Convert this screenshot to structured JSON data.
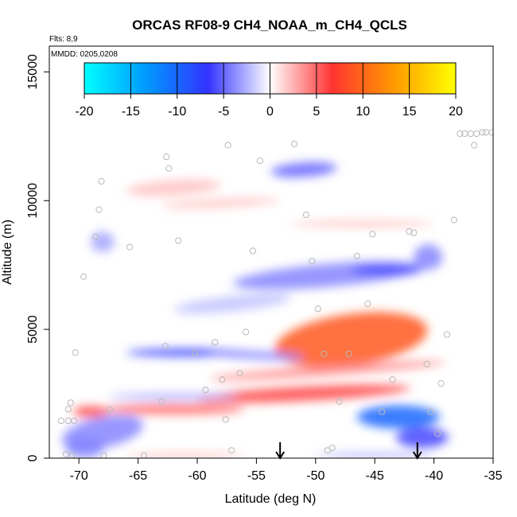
{
  "chart_data": {
    "type": "heatmap",
    "title": "ORCAS RF08-9 CH4_NOAA_m_CH4_QCLS",
    "annotations": {
      "flights": "Flts: 8,9",
      "dates": "MMDD: 0205,0208"
    },
    "xlabel": "Latitude (deg N)",
    "ylabel": "Altitude (m)",
    "xlim": [
      -72.5,
      -35
    ],
    "ylim": [
      0,
      16000
    ],
    "x_ticks": [
      -70,
      -65,
      -60,
      -55,
      -50,
      -45,
      -40,
      -35
    ],
    "y_ticks": [
      0,
      5000,
      10000,
      15000
    ],
    "colorbar": {
      "range": [
        -20,
        20
      ],
      "ticks": [
        -20,
        -15,
        -10,
        -5,
        0,
        5,
        10,
        15,
        20
      ],
      "stops": [
        "#00ffff",
        "#0099ff",
        "#3333ff",
        "#ffffff",
        "#ff3333",
        "#ff9900",
        "#ffff00"
      ]
    },
    "features": [
      {
        "x": -47,
        "y": 4600,
        "rx": 6.5,
        "ry": 1000,
        "value": 9,
        "rot": -8
      },
      {
        "x": -51,
        "y": 2500,
        "rx": 9,
        "ry": 280,
        "value": 6,
        "rot": -3
      },
      {
        "x": -49,
        "y": 3400,
        "rx": 10,
        "ry": 180,
        "value": 4,
        "rot": -4
      },
      {
        "x": -62,
        "y": 1900,
        "rx": 6,
        "ry": 200,
        "value": 5,
        "rot": 0
      },
      {
        "x": -69,
        "y": 1800,
        "rx": 1.5,
        "ry": 220,
        "value": 6,
        "rot": 0
      },
      {
        "x": -61,
        "y": 4100,
        "rx": 5,
        "ry": 150,
        "value": -7,
        "rot": 0
      },
      {
        "x": -55,
        "y": 4000,
        "rx": 4,
        "ry": 160,
        "value": -4,
        "rot": 3
      },
      {
        "x": -43,
        "y": 1600,
        "rx": 3.5,
        "ry": 450,
        "value": -10,
        "rot": 0
      },
      {
        "x": -41,
        "y": 800,
        "rx": 2.2,
        "ry": 400,
        "value": -6,
        "rot": 0
      },
      {
        "x": -49,
        "y": 7100,
        "rx": 8,
        "ry": 450,
        "value": -4,
        "rot": -5
      },
      {
        "x": -44,
        "y": 7300,
        "rx": 3,
        "ry": 200,
        "value": -6,
        "rot": 0
      },
      {
        "x": -40.5,
        "y": 7800,
        "rx": 1.2,
        "ry": 500,
        "value": -4,
        "rot": 0
      },
      {
        "x": -51,
        "y": 11200,
        "rx": 2.8,
        "ry": 280,
        "value": -5,
        "rot": -4
      },
      {
        "x": -62,
        "y": 10500,
        "rx": 4,
        "ry": 300,
        "value": 2,
        "rot": -4
      },
      {
        "x": -58,
        "y": 9900,
        "rx": 5,
        "ry": 160,
        "value": 2,
        "rot": -3
      },
      {
        "x": -68,
        "y": 1000,
        "rx": 3.5,
        "ry": 600,
        "value": -4,
        "rot": -12
      },
      {
        "x": -69.5,
        "y": 400,
        "rx": 1.6,
        "ry": 400,
        "value": -4,
        "rot": 0
      },
      {
        "x": -62,
        "y": 2400,
        "rx": 5.5,
        "ry": 120,
        "value": -3,
        "rot": 0
      },
      {
        "x": -61,
        "y": 100,
        "rx": 5,
        "ry": 80,
        "value": 3,
        "rot": 0
      },
      {
        "x": -45,
        "y": 100,
        "rx": 5,
        "ry": 100,
        "value": -3,
        "rot": 0
      },
      {
        "x": -68,
        "y": 8400,
        "rx": 1,
        "ry": 400,
        "value": -3,
        "rot": 0
      },
      {
        "x": -46,
        "y": 9100,
        "rx": 6,
        "ry": 130,
        "value": 2,
        "rot": 0
      },
      {
        "x": -57,
        "y": 6000,
        "rx": 5,
        "ry": 300,
        "value": -2,
        "rot": -6
      }
    ],
    "points": [
      [
        -71.5,
        1450
      ],
      [
        -71.1,
        150
      ],
      [
        -70.9,
        1450
      ],
      [
        -70.7,
        2150
      ],
      [
        -70.9,
        1900
      ],
      [
        -70.6,
        100
      ],
      [
        -70.4,
        1450
      ],
      [
        -70.3,
        4100
      ],
      [
        -69.6,
        7050
      ],
      [
        -68.6,
        8600
      ],
      [
        -68.3,
        9650
      ],
      [
        -68.1,
        10750
      ],
      [
        -67.9,
        100
      ],
      [
        -67.4,
        1900
      ],
      [
        -65.7,
        8200
      ],
      [
        -64.5,
        100
      ],
      [
        -63.0,
        2200
      ],
      [
        -62.7,
        4350
      ],
      [
        -62.6,
        11700
      ],
      [
        -62.4,
        11250
      ],
      [
        -61.6,
        8450
      ],
      [
        -60.2,
        4100
      ],
      [
        -59.3,
        2650
      ],
      [
        -58.5,
        4500
      ],
      [
        -57.9,
        3050
      ],
      [
        -57.6,
        1500
      ],
      [
        -57.4,
        12150
      ],
      [
        -57.1,
        300
      ],
      [
        -56.4,
        3300
      ],
      [
        -55.9,
        4900
      ],
      [
        -55.3,
        8050
      ],
      [
        -54.7,
        11550
      ],
      [
        -51.8,
        12200
      ],
      [
        -50.8,
        9450
      ],
      [
        -50.3,
        7650
      ],
      [
        -49.8,
        5800
      ],
      [
        -49.3,
        4050
      ],
      [
        -49.0,
        300
      ],
      [
        -48.6,
        400
      ],
      [
        -48.0,
        2200
      ],
      [
        -47.2,
        4050
      ],
      [
        -46.5,
        7850
      ],
      [
        -45.6,
        6000
      ],
      [
        -45.2,
        8700
      ],
      [
        -44.4,
        1800
      ],
      [
        -43.5,
        3050
      ],
      [
        -42.1,
        8800
      ],
      [
        -41.7,
        8750
      ],
      [
        -40.3,
        1800
      ],
      [
        -39.7,
        950
      ],
      [
        -39.4,
        2900
      ],
      [
        -38.9,
        4800
      ],
      [
        -38.3,
        9250
      ],
      [
        -37.8,
        12600
      ],
      [
        -37.4,
        12600
      ],
      [
        -36.9,
        12600
      ],
      [
        -36.6,
        12150
      ],
      [
        -36.4,
        12600
      ],
      [
        -35.9,
        12650
      ],
      [
        -35.6,
        12650
      ],
      [
        -35.1,
        12650
      ],
      [
        -40.6,
        3650
      ]
    ],
    "markers": [
      -53.0,
      -41.4
    ]
  }
}
